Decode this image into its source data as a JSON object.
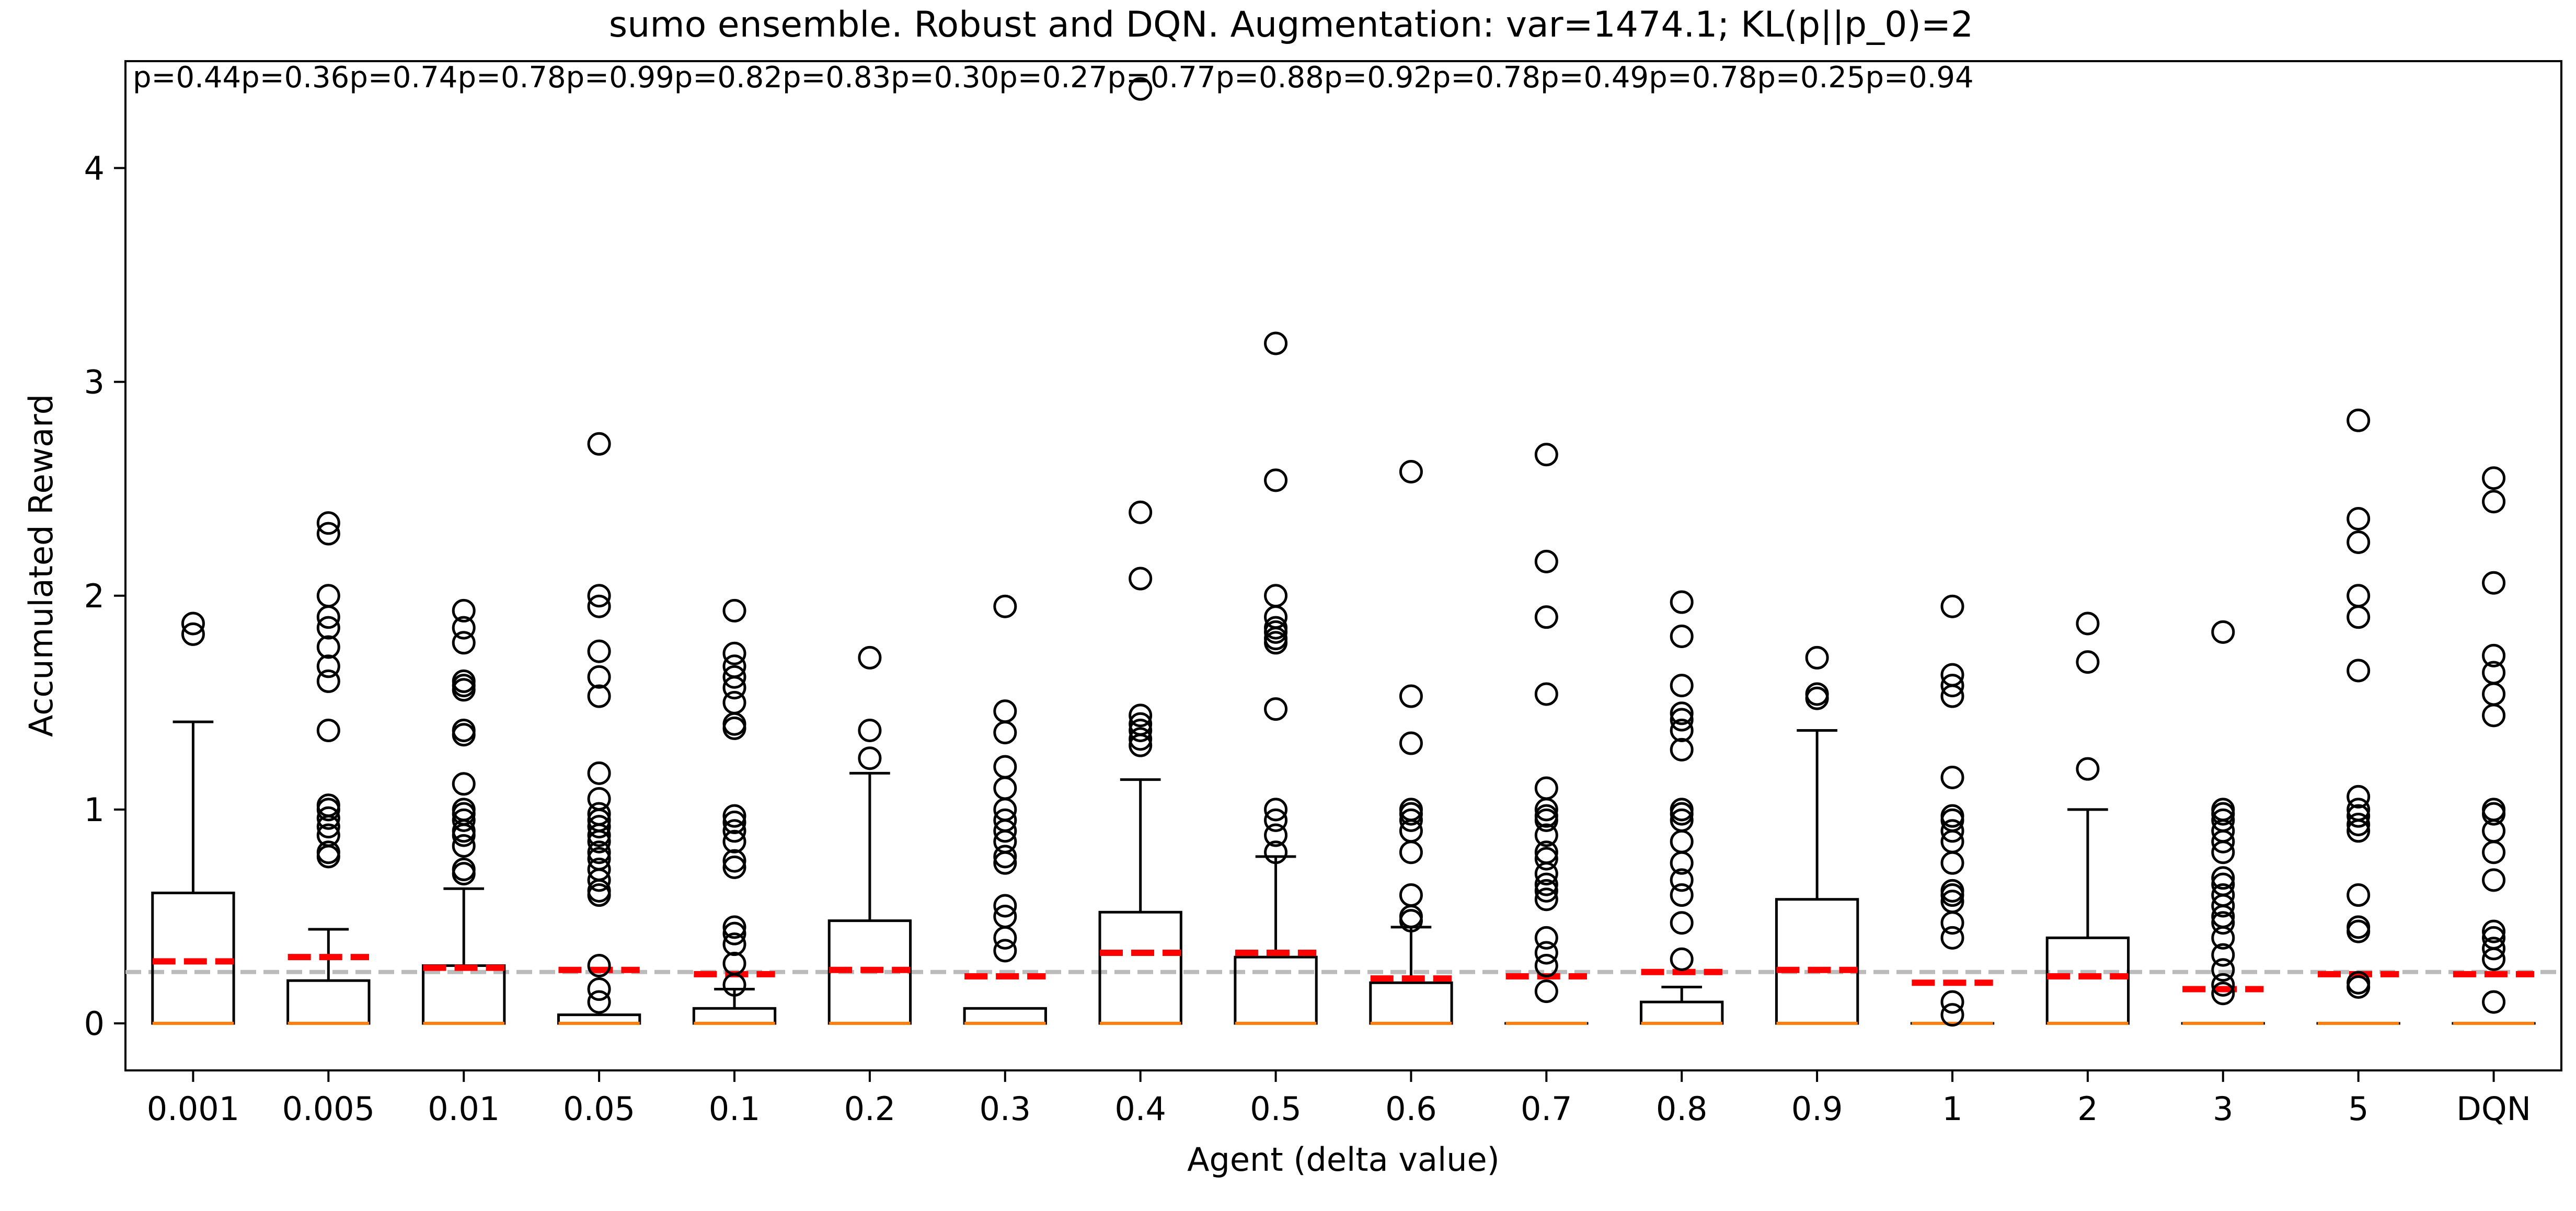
{
  "chart_data": {
    "type": "box",
    "title": "sumo ensemble. Robust and DQN. Augmentation: var=1474.1; KL(p||p_0)=2",
    "xlabel": "Agent (delta value)",
    "ylabel": "Accumulated Reward",
    "categories": [
      "0.001",
      "0.005",
      "0.01",
      "0.05",
      "0.1",
      "0.2",
      "0.3",
      "0.4",
      "0.5",
      "0.6",
      "0.7",
      "0.8",
      "0.9",
      "1",
      "2",
      "3",
      "5",
      "DQN"
    ],
    "p_values": [
      "p=0.44",
      "p=0.36",
      "p=0.74",
      "p=0.78",
      "p=0.99",
      "p=0.82",
      "p=0.83",
      "p=0.30",
      "p=0.27",
      "p=0.77",
      "p=0.88",
      "p=0.92",
      "p=0.78",
      "p=0.49",
      "p=0.78",
      "p=0.25",
      "p=0.94"
    ],
    "ylim": [
      -0.22,
      4.5
    ],
    "yticks": [
      0,
      1,
      2,
      3,
      4
    ],
    "reference_line": 0.24,
    "colors": {
      "box": "#000000",
      "median": "#ff7f0e",
      "mean": "#ff0000",
      "reference": "#bbbbbb"
    },
    "boxes": [
      {
        "q1": 0,
        "median": 0,
        "q3": 0.61,
        "whisker_low": 0,
        "whisker_high": 1.41,
        "mean": 0.29,
        "outliers": [
          1.82,
          1.87
        ]
      },
      {
        "q1": 0,
        "median": 0,
        "q3": 0.2,
        "whisker_low": 0,
        "whisker_high": 0.44,
        "mean": 0.31,
        "outliers": [
          0.78,
          0.8,
          0.88,
          0.92,
          0.96,
          1.0,
          1.02,
          1.37,
          1.6,
          1.67,
          1.76,
          1.85,
          1.9,
          2.0,
          2.29,
          2.34
        ]
      },
      {
        "q1": 0,
        "median": 0,
        "q3": 0.27,
        "whisker_low": 0,
        "whisker_high": 0.63,
        "mean": 0.26,
        "outliers": [
          0.7,
          0.72,
          0.83,
          0.88,
          0.9,
          0.95,
          0.98,
          1.0,
          1.12,
          1.35,
          1.37,
          1.56,
          1.58,
          1.6,
          1.78,
          1.85,
          1.93
        ]
      },
      {
        "q1": 0,
        "median": 0,
        "q3": 0.04,
        "whisker_low": 0,
        "whisker_high": 0.04,
        "mean": 0.25,
        "outliers": [
          0.1,
          0.16,
          0.27,
          0.6,
          0.62,
          0.67,
          0.72,
          0.77,
          0.8,
          0.85,
          0.88,
          0.92,
          0.95,
          0.98,
          1.05,
          1.17,
          1.53,
          1.62,
          1.74,
          1.95,
          2.0,
          2.71
        ]
      },
      {
        "q1": 0,
        "median": 0,
        "q3": 0.07,
        "whisker_low": 0,
        "whisker_high": 0.16,
        "mean": 0.23,
        "outliers": [
          0.18,
          0.28,
          0.37,
          0.42,
          0.45,
          0.73,
          0.76,
          0.85,
          0.9,
          0.94,
          0.97,
          1.38,
          1.4,
          1.5,
          1.57,
          1.62,
          1.67,
          1.73,
          1.93
        ]
      },
      {
        "q1": 0,
        "median": 0,
        "q3": 0.48,
        "whisker_low": 0,
        "whisker_high": 1.17,
        "mean": 0.25,
        "outliers": [
          1.24,
          1.37,
          1.71
        ]
      },
      {
        "q1": 0,
        "median": 0,
        "q3": 0.07,
        "whisker_low": 0,
        "whisker_high": 0.07,
        "mean": 0.22,
        "outliers": [
          0.34,
          0.4,
          0.5,
          0.55,
          0.75,
          0.78,
          0.85,
          0.9,
          0.95,
          1.0,
          1.1,
          1.2,
          1.36,
          1.46,
          1.95
        ]
      },
      {
        "q1": 0,
        "median": 0,
        "q3": 0.52,
        "whisker_low": 0,
        "whisker_high": 1.14,
        "mean": 0.33,
        "outliers": [
          1.3,
          1.33,
          1.37,
          1.4,
          1.44,
          2.08,
          2.39,
          4.37
        ]
      },
      {
        "q1": 0,
        "median": 0,
        "q3": 0.31,
        "whisker_low": 0,
        "whisker_high": 0.78,
        "mean": 0.33,
        "outliers": [
          0.8,
          0.88,
          0.95,
          1.0,
          1.47,
          1.78,
          1.8,
          1.83,
          1.85,
          1.9,
          2.0,
          2.54,
          3.18
        ]
      },
      {
        "q1": 0,
        "median": 0,
        "q3": 0.19,
        "whisker_low": 0,
        "whisker_high": 0.45,
        "mean": 0.21,
        "outliers": [
          0.48,
          0.5,
          0.6,
          0.8,
          0.9,
          0.95,
          0.98,
          1.0,
          1.31,
          1.53,
          2.58
        ]
      },
      {
        "q1": 0,
        "median": 0,
        "q3": 0,
        "whisker_low": 0,
        "whisker_high": 0,
        "mean": 0.22,
        "outliers": [
          0.15,
          0.27,
          0.33,
          0.4,
          0.58,
          0.62,
          0.65,
          0.7,
          0.77,
          0.8,
          0.88,
          0.95,
          0.97,
          1.0,
          1.1,
          1.54,
          1.9,
          2.16,
          2.66
        ]
      },
      {
        "q1": 0,
        "median": 0,
        "q3": 0.1,
        "whisker_low": 0,
        "whisker_high": 0.17,
        "mean": 0.24,
        "outliers": [
          0.3,
          0.47,
          0.6,
          0.67,
          0.75,
          0.85,
          0.95,
          0.98,
          1.0,
          1.28,
          1.37,
          1.42,
          1.45,
          1.58,
          1.81,
          1.97
        ]
      },
      {
        "q1": 0,
        "median": 0,
        "q3": 0.58,
        "whisker_low": 0,
        "whisker_high": 1.37,
        "mean": 0.25,
        "outliers": [
          1.52,
          1.54,
          1.71
        ]
      },
      {
        "q1": 0,
        "median": 0,
        "q3": 0,
        "whisker_low": 0,
        "whisker_high": 0,
        "mean": 0.19,
        "outliers": [
          0.04,
          0.1,
          0.4,
          0.47,
          0.57,
          0.6,
          0.62,
          0.75,
          0.85,
          0.9,
          0.95,
          0.97,
          1.15,
          1.53,
          1.58,
          1.63,
          1.95
        ]
      },
      {
        "q1": 0,
        "median": 0,
        "q3": 0.4,
        "whisker_low": 0,
        "whisker_high": 1.0,
        "mean": 0.22,
        "outliers": [
          1.19,
          1.69,
          1.87
        ]
      },
      {
        "q1": 0,
        "median": 0,
        "q3": 0,
        "whisker_low": 0,
        "whisker_high": 0,
        "mean": 0.16,
        "outliers": [
          0.14,
          0.18,
          0.25,
          0.32,
          0.4,
          0.47,
          0.5,
          0.55,
          0.6,
          0.65,
          0.68,
          0.8,
          0.85,
          0.9,
          0.95,
          0.98,
          1.0,
          1.83
        ]
      },
      {
        "q1": 0,
        "median": 0,
        "q3": 0,
        "whisker_low": 0,
        "whisker_high": 0,
        "mean": 0.23,
        "outliers": [
          0.17,
          0.19,
          0.43,
          0.45,
          0.6,
          0.9,
          0.93,
          0.97,
          1.0,
          1.06,
          1.65,
          1.9,
          2.0,
          2.25,
          2.36,
          2.82
        ]
      },
      {
        "q1": 0,
        "median": 0,
        "q3": 0,
        "whisker_low": 0,
        "whisker_high": 0,
        "mean": 0.23,
        "outliers": [
          0.1,
          0.3,
          0.35,
          0.4,
          0.43,
          0.67,
          0.8,
          0.9,
          0.98,
          1.0,
          1.44,
          1.54,
          1.64,
          1.72,
          2.06,
          2.44,
          2.55
        ]
      }
    ]
  }
}
